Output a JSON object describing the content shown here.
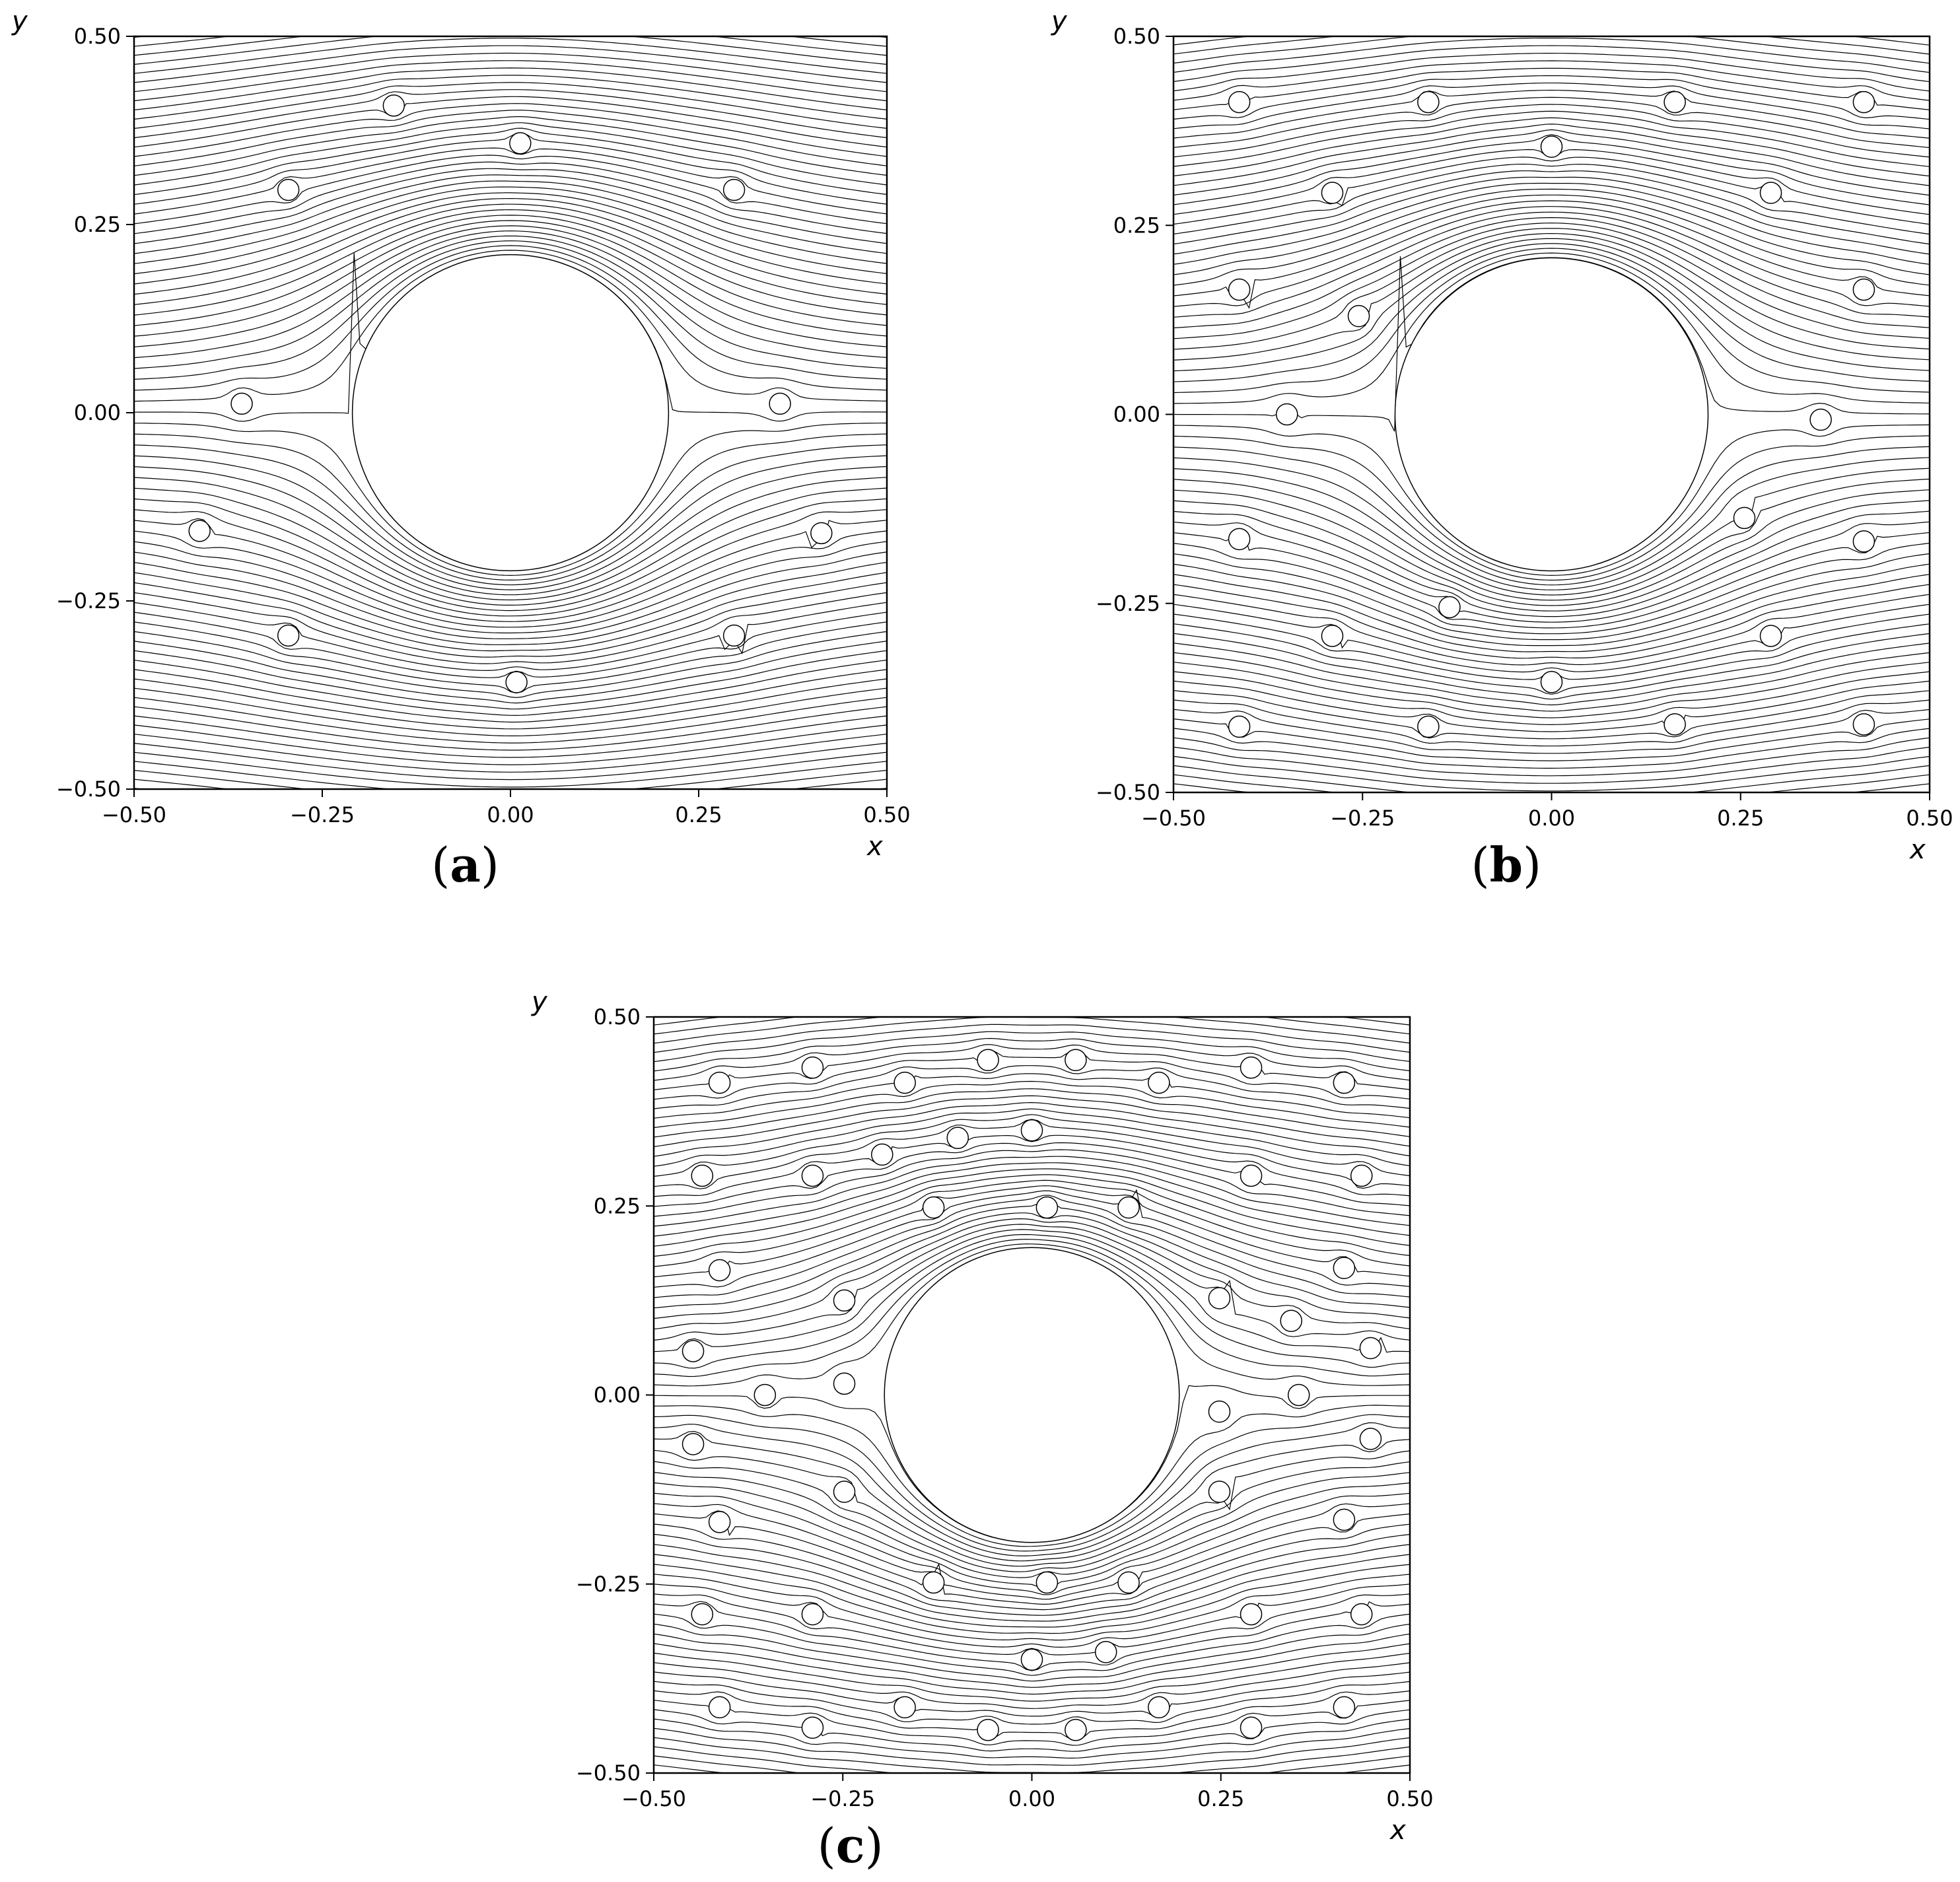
{
  "figure": {
    "panel_labels": [
      "a",
      "b",
      "c"
    ]
  },
  "chart_data": [
    {
      "type": "line",
      "panel": "a",
      "xlabel": "x",
      "ylabel": "y",
      "xlim": [
        -0.5,
        0.5
      ],
      "ylim": [
        -0.5,
        0.5
      ],
      "xticks": [
        -0.5,
        -0.25,
        0.0,
        0.25,
        0.5
      ],
      "yticks": [
        -0.5,
        -0.25,
        0.0,
        0.25,
        0.5
      ],
      "xtick_labels": [
        "−0.50",
        "−0.25",
        "0.00",
        "0.25",
        "0.50"
      ],
      "ytick_labels": [
        "−0.50",
        "−0.25",
        "0.00",
        "0.25",
        "0.50"
      ],
      "grid": false,
      "large_cylinder": {
        "cx": 0.0,
        "cy": 0.0,
        "r": 0.21
      },
      "particle_radius": 0.014,
      "particles": [
        [
          -0.155,
          0.408
        ],
        [
          0.013,
          0.358
        ],
        [
          -0.295,
          0.296
        ],
        [
          0.297,
          0.296
        ],
        [
          -0.357,
          0.012
        ],
        [
          0.358,
          0.012
        ],
        [
          -0.413,
          -0.157
        ],
        [
          0.413,
          -0.16
        ],
        [
          -0.295,
          -0.296
        ],
        [
          0.297,
          -0.296
        ],
        [
          0.008,
          -0.358
        ]
      ]
    },
    {
      "type": "line",
      "panel": "b",
      "xlabel": "x",
      "ylabel": "y",
      "xlim": [
        -0.5,
        0.5
      ],
      "ylim": [
        -0.5,
        0.5
      ],
      "xticks": [
        -0.5,
        -0.25,
        0.0,
        0.25,
        0.5
      ],
      "yticks": [
        -0.5,
        -0.25,
        0.0,
        0.25,
        0.5
      ],
      "xtick_labels": [
        "−0.50",
        "−0.25",
        "0.00",
        "0.25",
        "0.50"
      ],
      "ytick_labels": [
        "−0.50",
        "−0.25",
        "0.00",
        "0.25",
        "0.50"
      ],
      "grid": false,
      "large_cylinder": {
        "cx": 0.0,
        "cy": 0.0,
        "r": 0.207
      },
      "particle_radius": 0.014,
      "particles": [
        [
          -0.413,
          0.413
        ],
        [
          -0.163,
          0.413
        ],
        [
          0.163,
          0.413
        ],
        [
          0.413,
          0.413
        ],
        [
          0.0,
          0.354
        ],
        [
          -0.29,
          0.293
        ],
        [
          0.29,
          0.293
        ],
        [
          -0.413,
          0.165
        ],
        [
          -0.255,
          0.13
        ],
        [
          0.413,
          0.165
        ],
        [
          -0.35,
          0.0
        ],
        [
          0.356,
          -0.007
        ],
        [
          -0.413,
          -0.165
        ],
        [
          0.255,
          -0.137
        ],
        [
          0.413,
          -0.168
        ],
        [
          -0.135,
          -0.255
        ],
        [
          -0.29,
          -0.293
        ],
        [
          0.29,
          -0.293
        ],
        [
          0.0,
          -0.354
        ],
        [
          -0.413,
          -0.413
        ],
        [
          -0.163,
          -0.413
        ],
        [
          0.163,
          -0.41
        ],
        [
          0.413,
          -0.41
        ]
      ]
    },
    {
      "type": "line",
      "panel": "c",
      "xlabel": "x",
      "ylabel": "y",
      "xlim": [
        -0.5,
        0.5
      ],
      "ylim": [
        -0.5,
        0.5
      ],
      "xticks": [
        -0.5,
        -0.25,
        0.0,
        0.25,
        0.5
      ],
      "yticks": [
        -0.5,
        -0.25,
        0.0,
        0.25,
        0.5
      ],
      "xtick_labels": [
        "−0.50",
        "−0.25",
        "0.00",
        "0.25",
        "0.50"
      ],
      "ytick_labels": [
        "−0.50",
        "−0.25",
        "0.00",
        "0.25",
        "0.50"
      ],
      "grid": false,
      "large_cylinder": {
        "cx": 0.0,
        "cy": 0.0,
        "r": 0.195
      },
      "particle_radius": 0.014,
      "particles": [
        [
          -0.413,
          0.413
        ],
        [
          -0.29,
          0.433
        ],
        [
          -0.168,
          0.413
        ],
        [
          -0.058,
          0.443
        ],
        [
          0.058,
          0.443
        ],
        [
          0.168,
          0.413
        ],
        [
          0.29,
          0.433
        ],
        [
          0.413,
          0.413
        ],
        [
          -0.098,
          0.34
        ],
        [
          0.0,
          0.35
        ],
        [
          -0.198,
          0.318
        ],
        [
          -0.436,
          0.29
        ],
        [
          -0.29,
          0.29
        ],
        [
          0.29,
          0.29
        ],
        [
          0.436,
          0.29
        ],
        [
          -0.13,
          0.248
        ],
        [
          0.02,
          0.248
        ],
        [
          0.128,
          0.248
        ],
        [
          -0.413,
          0.165
        ],
        [
          0.413,
          0.168
        ],
        [
          -0.248,
          0.125
        ],
        [
          0.248,
          0.128
        ],
        [
          0.343,
          0.098
        ],
        [
          -0.448,
          0.058
        ],
        [
          0.448,
          0.062
        ],
        [
          -0.353,
          0.0
        ],
        [
          -0.248,
          0.015
        ],
        [
          0.353,
          0.0
        ],
        [
          0.248,
          -0.022
        ],
        [
          -0.448,
          -0.065
        ],
        [
          0.448,
          -0.058
        ],
        [
          -0.248,
          -0.128
        ],
        [
          0.248,
          -0.128
        ],
        [
          -0.413,
          -0.168
        ],
        [
          0.413,
          -0.165
        ],
        [
          -0.13,
          -0.248
        ],
        [
          0.02,
          -0.248
        ],
        [
          0.128,
          -0.248
        ],
        [
          -0.436,
          -0.29
        ],
        [
          -0.29,
          -0.29
        ],
        [
          0.29,
          -0.29
        ],
        [
          0.436,
          -0.29
        ],
        [
          0.0,
          -0.35
        ],
        [
          0.098,
          -0.34
        ],
        [
          -0.413,
          -0.413
        ],
        [
          -0.168,
          -0.413
        ],
        [
          0.168,
          -0.413
        ],
        [
          0.413,
          -0.413
        ],
        [
          -0.29,
          -0.44
        ],
        [
          -0.058,
          -0.443
        ],
        [
          0.058,
          -0.443
        ],
        [
          0.29,
          -0.44
        ]
      ]
    }
  ]
}
